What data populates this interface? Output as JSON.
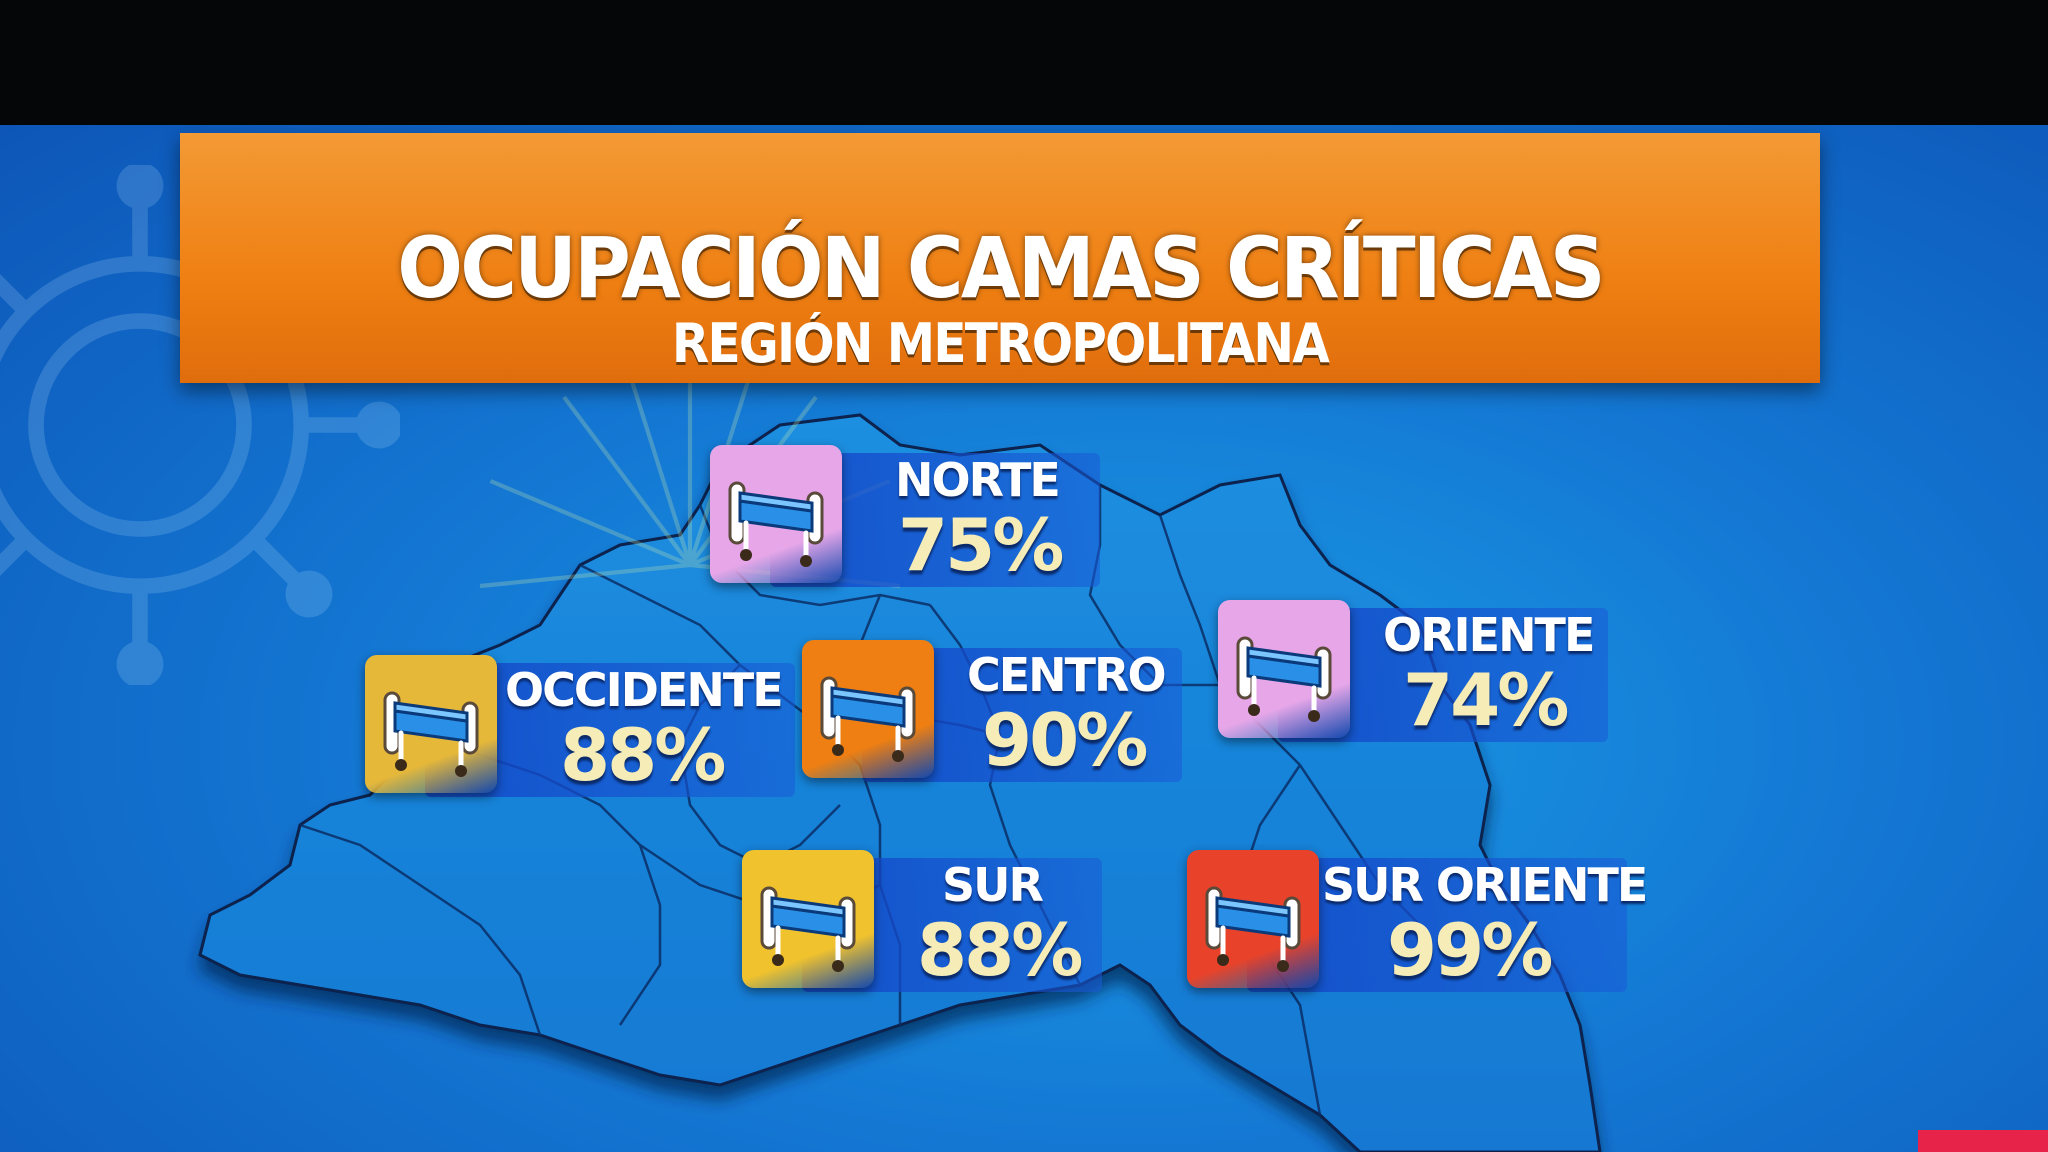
{
  "title": "OCUPACIÓN CAMAS CRÍTICAS",
  "subtitle": "REGIÓN METROPOLITANA",
  "colors": {
    "banner": "#ef7f12",
    "background": "#1479d4",
    "percent_text": "#f5ecb8",
    "level_pink": "#e6a6e8",
    "level_yellow": "#e6b83a",
    "level_orange": "#ef7f12",
    "level_red": "#e8432a"
  },
  "zones": [
    {
      "id": "norte",
      "name": "NORTE",
      "percent": "75%",
      "value": 75,
      "icon": "hospital-bed-icon",
      "color": "#e6a6e8"
    },
    {
      "id": "occidente",
      "name": "OCCIDENTE",
      "percent": "88%",
      "value": 88,
      "icon": "hospital-bed-icon",
      "color": "#e6b83a"
    },
    {
      "id": "centro",
      "name": "CENTRO",
      "percent": "90%",
      "value": 90,
      "icon": "hospital-bed-icon",
      "color": "#ef7f12"
    },
    {
      "id": "oriente",
      "name": "ORIENTE",
      "percent": "74%",
      "value": 74,
      "icon": "hospital-bed-icon",
      "color": "#e6a6e8"
    },
    {
      "id": "sur",
      "name": "SUR",
      "percent": "88%",
      "value": 88,
      "icon": "hospital-bed-icon",
      "color": "#f0c22e"
    },
    {
      "id": "sur_oriente",
      "name": "SUR ORIENTE",
      "percent": "99%",
      "value": 99,
      "icon": "hospital-bed-icon",
      "color": "#e8432a"
    }
  ]
}
